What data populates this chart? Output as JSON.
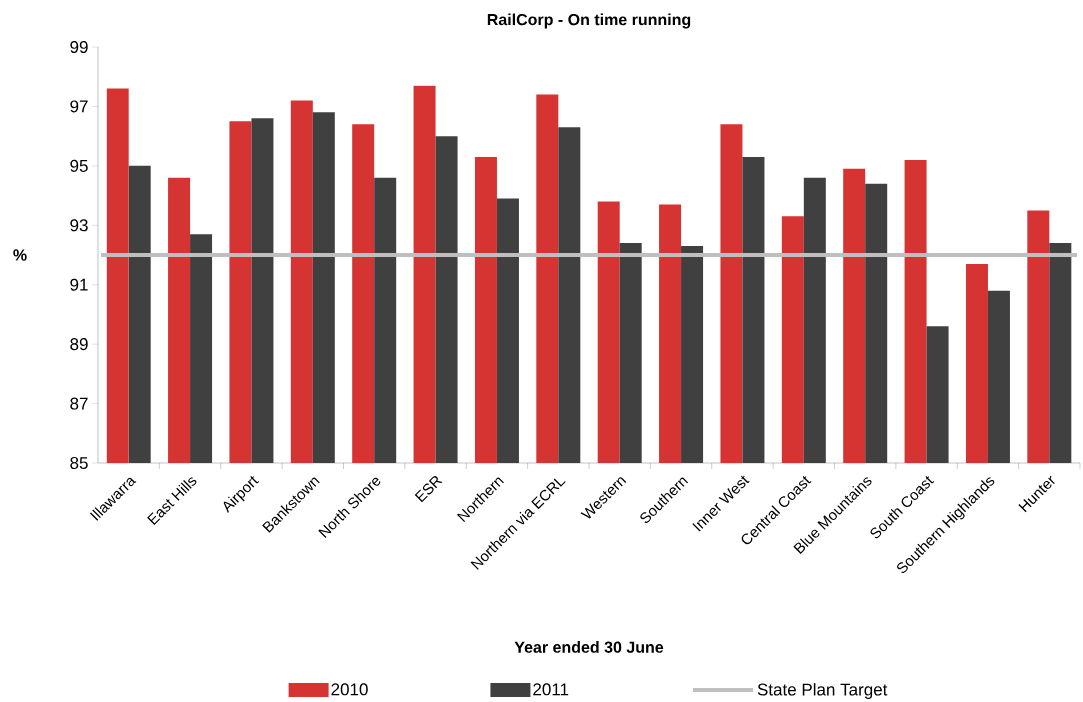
{
  "chart_data": {
    "type": "bar",
    "title": "RailCorp - On time running",
    "xlabel": "Year ended 30 June",
    "ylabel": "%",
    "categories": [
      "Illawarra",
      "East Hills",
      "Airport",
      "Bankstown",
      "North Shore",
      "ESR",
      "Northern",
      "Northern via ECRL",
      "Western",
      "Southern",
      "Inner West",
      "Central Coast",
      "Blue Mountains",
      "South Coast",
      "Southern Highlands",
      "Hunter"
    ],
    "series": [
      {
        "name": "2010",
        "color": "#d63333",
        "values": [
          97.6,
          94.6,
          96.5,
          97.2,
          96.4,
          97.7,
          95.3,
          97.4,
          93.8,
          93.7,
          96.4,
          93.3,
          94.9,
          95.2,
          91.7,
          93.5
        ]
      },
      {
        "name": "2011",
        "color": "#404040",
        "values": [
          95.0,
          92.7,
          96.6,
          96.8,
          94.6,
          96.0,
          93.9,
          96.3,
          92.4,
          92.3,
          95.3,
          94.6,
          94.4,
          89.6,
          90.8,
          92.4
        ]
      }
    ],
    "ylim": [
      85,
      99
    ],
    "yticks": [
      85,
      87,
      89,
      91,
      93,
      95,
      97,
      99
    ],
    "ref_lines": [
      {
        "axis": "y",
        "value": 92,
        "label": "State Plan Target",
        "color": "#bfbfbf"
      }
    ],
    "legend": "bottom"
  }
}
